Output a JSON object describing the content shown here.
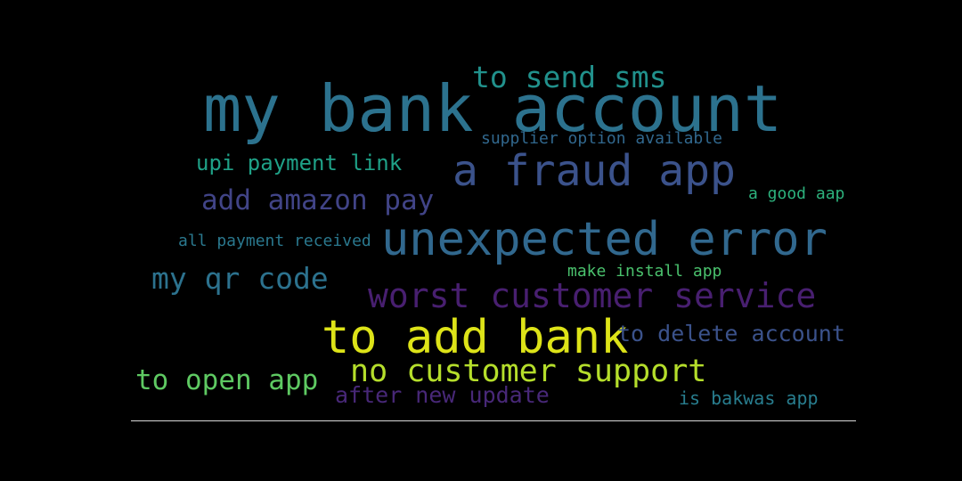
{
  "words": [
    {
      "text": "my bank account",
      "color": "#2c728e"
    },
    {
      "text": "to send sms",
      "color": "#21918c"
    },
    {
      "text": "supplier option available",
      "color": "#31688e"
    },
    {
      "text": "upi payment link",
      "color": "#1fa187"
    },
    {
      "text": "a fraud app",
      "color": "#3b528b"
    },
    {
      "text": "add amazon pay",
      "color": "#414487"
    },
    {
      "text": "a good aap",
      "color": "#2db27d"
    },
    {
      "text": "all payment received",
      "color": "#2a788e"
    },
    {
      "text": "unexpected error",
      "color": "#31688e"
    },
    {
      "text": "my qr code",
      "color": "#2c728e"
    },
    {
      "text": "make install app",
      "color": "#4ac16d"
    },
    {
      "text": "worst customer service",
      "color": "#481f70"
    },
    {
      "text": "to add bank",
      "color": "#dde318"
    },
    {
      "text": "to delete account",
      "color": "#3b528b"
    },
    {
      "text": "to open app",
      "color": "#5ec962"
    },
    {
      "text": "no customer support",
      "color": "#b5de2b"
    },
    {
      "text": "after new update",
      "color": "#482878"
    },
    {
      "text": "is bakwas app",
      "color": "#287d8e"
    }
  ]
}
